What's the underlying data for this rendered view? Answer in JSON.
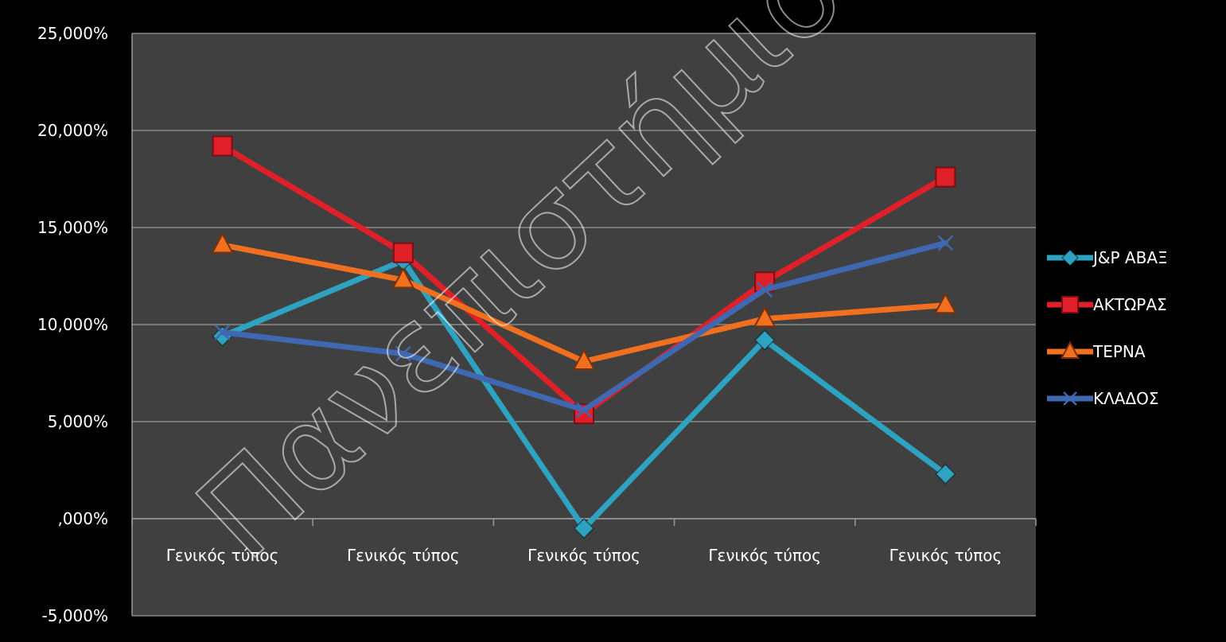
{
  "watermark": "Πανεπιστήμιο Πειραιώς",
  "chart_data": {
    "type": "line",
    "title": "",
    "xlabel": "",
    "ylabel": "",
    "categories": [
      "Γενικός τύπος",
      "Γενικός τύπος",
      "Γενικός τύπος",
      "Γενικός τύπος",
      "Γενικός τύπος"
    ],
    "ylim": [
      -5,
      25
    ],
    "ytick_values": [
      -5,
      0,
      5,
      10,
      15,
      20,
      25
    ],
    "ytick_labels": [
      "-5,000%",
      ",000%",
      "5,000%",
      "10,000%",
      "15,000%",
      "20,000%",
      "25,000%"
    ],
    "grid": true,
    "legend_position": "right",
    "series": [
      {
        "name": "J&P ΑΒΑΞ",
        "values": [
          9.4,
          13.3,
          -0.5,
          9.2,
          2.3
        ],
        "color": "#2EA3C1",
        "marker": "diamond"
      },
      {
        "name": "ΑΚΤΩΡΑΣ",
        "values": [
          19.2,
          13.7,
          5.4,
          12.2,
          17.6
        ],
        "color": "#E02028",
        "marker": "square"
      },
      {
        "name": "ΤΕΡΝΑ",
        "values": [
          14.1,
          12.3,
          8.1,
          10.3,
          11.0
        ],
        "color": "#F07020",
        "marker": "triangle"
      },
      {
        "name": "ΚΛΑΔΟΣ",
        "values": [
          9.6,
          8.5,
          5.6,
          11.8,
          14.2
        ],
        "color": "#3F68B0",
        "marker": "x"
      }
    ]
  }
}
